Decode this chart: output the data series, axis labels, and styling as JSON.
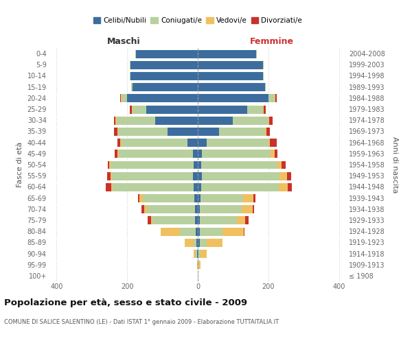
{
  "age_groups": [
    "100+",
    "95-99",
    "90-94",
    "85-89",
    "80-84",
    "75-79",
    "70-74",
    "65-69",
    "60-64",
    "55-59",
    "50-54",
    "45-49",
    "40-44",
    "35-39",
    "30-34",
    "25-29",
    "20-24",
    "15-19",
    "10-14",
    "5-9",
    "0-4"
  ],
  "birth_years": [
    "≤ 1908",
    "1909-1913",
    "1914-1918",
    "1919-1923",
    "1924-1928",
    "1929-1933",
    "1934-1938",
    "1939-1943",
    "1944-1948",
    "1949-1953",
    "1954-1958",
    "1959-1963",
    "1964-1968",
    "1969-1973",
    "1974-1978",
    "1979-1983",
    "1984-1988",
    "1989-1993",
    "1994-1998",
    "1999-2003",
    "2004-2008"
  ],
  "maschi": {
    "celibi": [
      0,
      0,
      2,
      3,
      5,
      8,
      8,
      10,
      12,
      14,
      12,
      14,
      30,
      85,
      120,
      145,
      200,
      185,
      190,
      190,
      175
    ],
    "coniugati": [
      0,
      0,
      4,
      8,
      45,
      120,
      135,
      145,
      230,
      230,
      235,
      210,
      185,
      140,
      110,
      40,
      15,
      3,
      2,
      2,
      2
    ],
    "vedovi": [
      0,
      2,
      5,
      25,
      55,
      5,
      8,
      10,
      3,
      3,
      3,
      3,
      5,
      3,
      3,
      2,
      2,
      0,
      0,
      0,
      0
    ],
    "divorziati": [
      0,
      0,
      0,
      0,
      0,
      8,
      8,
      5,
      15,
      10,
      5,
      8,
      8,
      10,
      5,
      5,
      3,
      0,
      0,
      0,
      0
    ]
  },
  "femmine": {
    "nubili": [
      0,
      0,
      2,
      5,
      5,
      5,
      5,
      8,
      10,
      12,
      10,
      12,
      25,
      60,
      100,
      140,
      200,
      190,
      185,
      185,
      165
    ],
    "coniugate": [
      0,
      2,
      5,
      20,
      65,
      105,
      120,
      120,
      220,
      220,
      215,
      195,
      175,
      130,
      100,
      45,
      18,
      3,
      2,
      2,
      2
    ],
    "vedove": [
      2,
      5,
      18,
      45,
      60,
      25,
      30,
      30,
      25,
      20,
      12,
      10,
      5,
      5,
      3,
      2,
      2,
      0,
      0,
      0,
      0
    ],
    "divorziate": [
      0,
      0,
      0,
      0,
      3,
      8,
      5,
      5,
      12,
      12,
      12,
      8,
      18,
      10,
      8,
      5,
      3,
      0,
      0,
      0,
      0
    ]
  },
  "colors": {
    "celibi": "#3d6d9e",
    "coniugati": "#b8d09e",
    "vedovi": "#f0c060",
    "divorziati": "#c8322a"
  },
  "title": "Popolazione per età, sesso e stato civile - 2009",
  "subtitle": "COMUNE DI SALICE SALENTINO (LE) - Dati ISTAT 1° gennaio 2009 - Elaborazione TUTTAITALIA.IT",
  "xlabel_left": "Maschi",
  "xlabel_right": "Femmine",
  "ylabel_left": "Fasce di età",
  "ylabel_right": "Anni di nascita",
  "xlim": 420,
  "background_color": "#ffffff",
  "grid_color": "#cccccc"
}
